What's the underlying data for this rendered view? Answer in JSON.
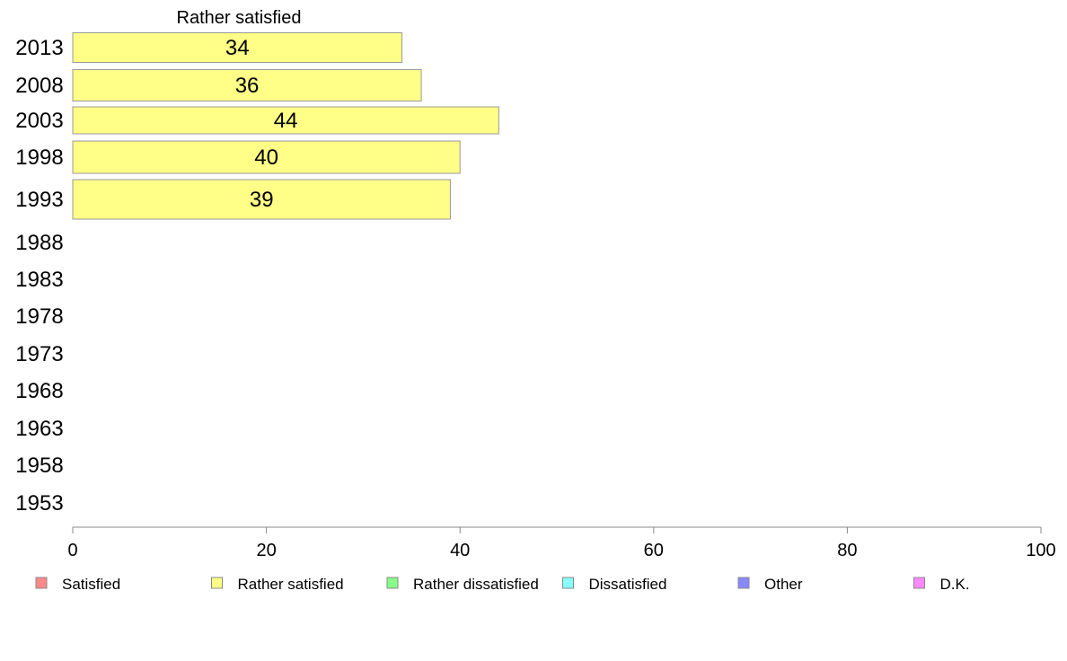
{
  "chart_data": {
    "type": "bar",
    "orientation": "horizontal",
    "series_title": "Rather satisfied",
    "categories": [
      "2013",
      "2008",
      "2003",
      "1998",
      "1993",
      "1988",
      "1983",
      "1978",
      "1973",
      "1968",
      "1963",
      "1958",
      "1953"
    ],
    "series": [
      {
        "name": "Rather satisfied",
        "color": "#ffff88",
        "values": [
          34,
          36,
          44,
          40,
          39,
          null,
          null,
          null,
          null,
          null,
          null,
          null,
          null
        ]
      }
    ],
    "xlim": [
      0,
      100
    ],
    "xticks": [
      0,
      20,
      40,
      60,
      80,
      100
    ],
    "grid": false,
    "legend_position": "bottom",
    "legend": [
      {
        "label": "Satisfied",
        "color": "#ff8888"
      },
      {
        "label": "Rather satisfied",
        "color": "#ffff88"
      },
      {
        "label": "Rather dissatisfied",
        "color": "#88ff88"
      },
      {
        "label": "Dissatisfied",
        "color": "#88ffff"
      },
      {
        "label": "Other",
        "color": "#8888ff"
      },
      {
        "label": "D.K.",
        "color": "#ff88ff"
      }
    ]
  }
}
